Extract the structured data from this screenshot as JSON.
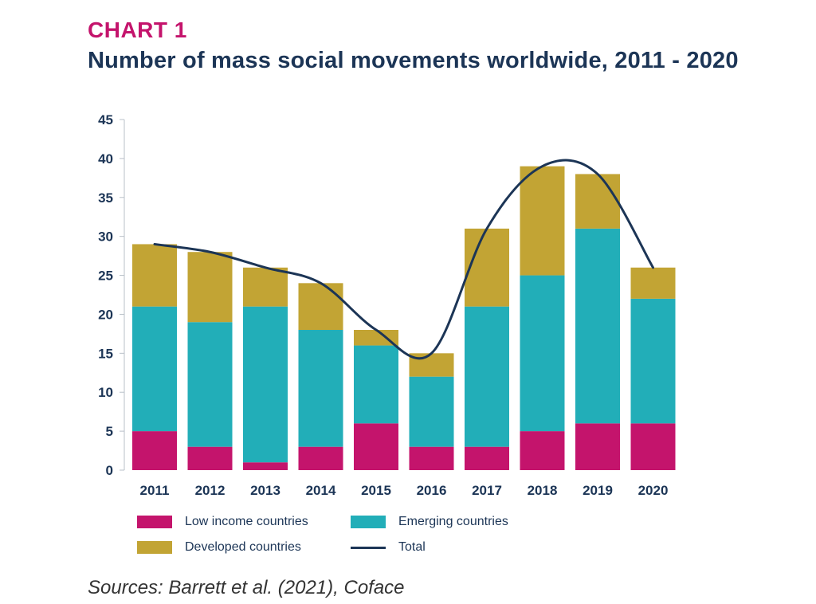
{
  "header": {
    "label": "CHART 1",
    "title": "Number of mass social movements worldwide, 2011 - 2020"
  },
  "colors": {
    "low_income": "#c4146c",
    "emerging": "#22aeb8",
    "developed": "#c2a434",
    "total": "#1c3556",
    "axis": "#b9c0c8"
  },
  "chart_data": {
    "type": "bar",
    "stacked": true,
    "title": "Number of mass social movements worldwide, 2011 - 2020",
    "xlabel": "",
    "ylabel": "",
    "ylim": [
      0,
      45
    ],
    "yticks": [
      0,
      5,
      10,
      15,
      20,
      25,
      30,
      35,
      40,
      45
    ],
    "categories": [
      "2011",
      "2012",
      "2013",
      "2014",
      "2015",
      "2016",
      "2017",
      "2018",
      "2019",
      "2020"
    ],
    "series": [
      {
        "name": "Low income countries",
        "kind": "bar",
        "values": [
          5,
          3,
          1,
          3,
          6,
          3,
          3,
          5,
          6,
          6
        ]
      },
      {
        "name": "Emerging countries",
        "kind": "bar",
        "values": [
          16,
          16,
          20,
          15,
          10,
          9,
          18,
          20,
          25,
          16
        ]
      },
      {
        "name": "Developed countries",
        "kind": "bar",
        "values": [
          8,
          9,
          5,
          6,
          2,
          3,
          10,
          14,
          7,
          4
        ]
      },
      {
        "name": "Total",
        "kind": "line",
        "values": [
          29,
          28,
          26,
          24,
          18,
          15,
          31,
          39,
          38,
          26
        ]
      }
    ],
    "legend_position": "bottom-left"
  },
  "legend": {
    "low_income": "Low income countries",
    "emerging": "Emerging countries",
    "developed": "Developed countries",
    "total": "Total"
  },
  "source": "Sources: Barrett et al. (2021), Coface"
}
